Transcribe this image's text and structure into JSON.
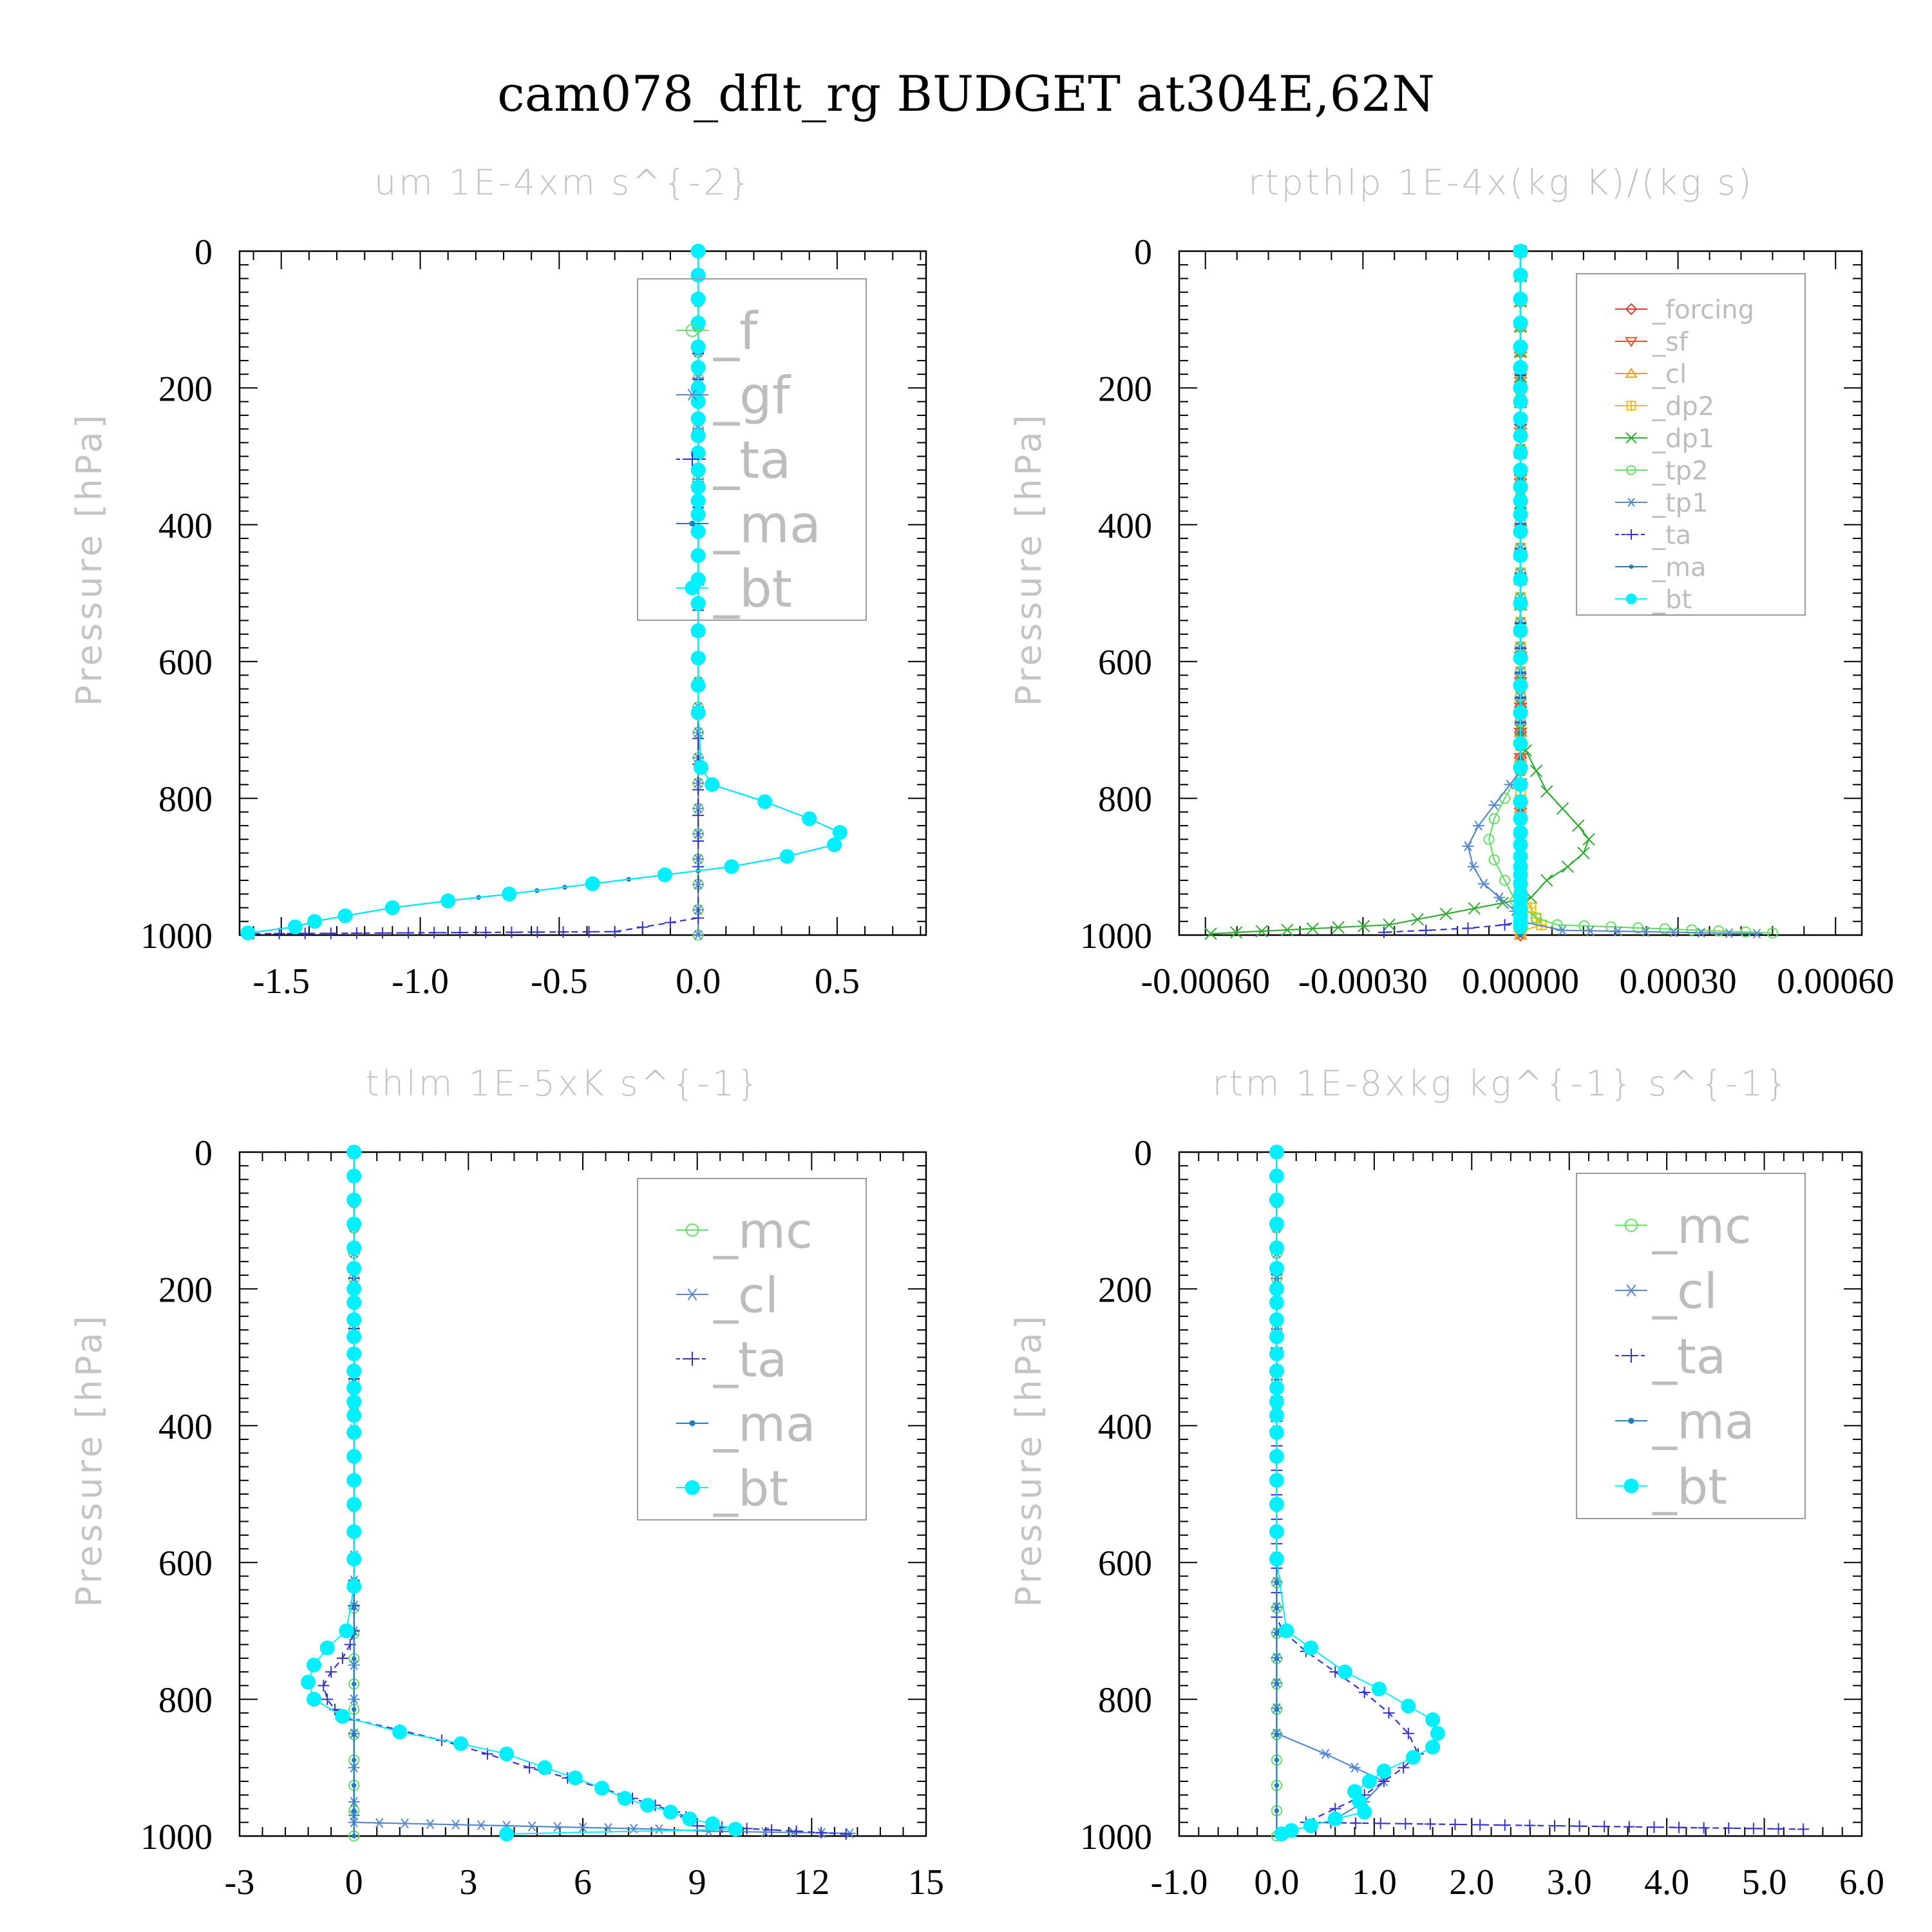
{
  "title": "cam078_dflt_rg  BUDGET at304E,62N",
  "chart_data": [
    {
      "type": "line",
      "title": "um   1E-4xm s^{-2}",
      "ylabel": "Pressure [hPa]",
      "xlabel": "",
      "xlim": [
        -1.65,
        0.82
      ],
      "ylim": [
        1000,
        0
      ],
      "xticks": [
        -1.5,
        -1.0,
        -0.5,
        0.0,
        0.5
      ],
      "xtick_labels": [
        "-1.5",
        "-1.0",
        "-0.5",
        "0.0",
        "0.5"
      ],
      "yticks": [
        0,
        200,
        400,
        600,
        800,
        1000
      ],
      "legend_font": 80,
      "series": [
        {
          "name": "_f",
          "color": "#66dd66",
          "marker": "circle-open",
          "x": [
            0,
            0
          ],
          "y": [
            0,
            1000
          ]
        },
        {
          "name": "_gf",
          "color": "#5588cc",
          "marker": "asterisk",
          "x": [
            0,
            0
          ],
          "y": [
            0,
            1000
          ]
        },
        {
          "name": "_ta",
          "color": "#3333cc",
          "marker": "plus",
          "dash": true,
          "x": [
            0,
            0,
            0,
            0,
            -0.3,
            -1.6
          ],
          "y": [
            0,
            600,
            900,
            975,
            995,
            998
          ]
        },
        {
          "name": "_ma",
          "color": "#1e7fc0",
          "marker": "dot",
          "x": [
            0,
            0,
            0,
            0,
            0,
            0,
            0,
            0,
            0,
            0,
            0,
            0,
            0,
            0,
            0,
            0,
            0,
            0,
            0,
            0,
            0,
            0,
            0,
            0.01,
            0.05,
            0.24,
            0.4,
            0.51,
            0.49,
            0.32,
            0.12,
            -0.12,
            -0.38,
            -0.68,
            -0.9,
            -1.1,
            -1.27,
            -1.38,
            -1.45,
            -1.62
          ],
          "y": [
            0,
            35,
            70,
            105,
            140,
            170,
            200,
            220,
            245,
            270,
            295,
            320,
            345,
            365,
            385,
            410,
            445,
            480,
            515,
            555,
            595,
            635,
            675,
            755,
            780,
            805,
            830,
            850,
            868,
            885,
            900,
            912,
            925,
            940,
            950,
            960,
            972,
            980,
            988,
            997
          ]
        },
        {
          "name": "_bt",
          "color": "#00f0ff",
          "marker": "dot-big",
          "x": [
            0,
            0,
            0,
            0,
            0,
            0,
            0,
            0,
            0,
            0,
            0,
            0,
            0,
            0,
            0,
            0,
            0,
            0,
            0,
            0,
            0,
            0,
            0,
            0.01,
            0.05,
            0.24,
            0.4,
            0.51,
            0.49,
            0.32,
            0.12,
            -0.12,
            -0.38,
            -0.68,
            -0.9,
            -1.1,
            -1.27,
            -1.38,
            -1.45,
            -1.62
          ],
          "y": [
            0,
            35,
            70,
            105,
            140,
            170,
            200,
            220,
            245,
            270,
            295,
            320,
            345,
            365,
            385,
            410,
            445,
            480,
            515,
            555,
            595,
            635,
            675,
            755,
            780,
            805,
            830,
            850,
            868,
            885,
            900,
            912,
            925,
            940,
            950,
            960,
            972,
            980,
            988,
            997
          ]
        }
      ]
    },
    {
      "type": "line",
      "title": "rtpthlp   1E-4x(kg K)/(kg s)",
      "ylabel": "Pressure [hPa]",
      "xlabel": "",
      "xlim": [
        -0.00065,
        0.00065
      ],
      "ylim": [
        1000,
        0
      ],
      "xticks": [
        -0.0006,
        -0.0003,
        0.0,
        0.0003,
        0.0006
      ],
      "xtick_labels": [
        "-0.00060",
        "-0.00030",
        "0.00000",
        "0.00030",
        "0.00060"
      ],
      "yticks": [
        0,
        200,
        400,
        600,
        800,
        1000
      ],
      "legend_font": 40,
      "series": [
        {
          "name": "_forcing",
          "color": "#d94040",
          "marker": "diamond",
          "x": [
            0,
            0
          ],
          "y": [
            0,
            1000
          ]
        },
        {
          "name": "_sf",
          "color": "#e05030",
          "marker": "tri-down",
          "x": [
            0,
            0
          ],
          "y": [
            0,
            1000
          ]
        },
        {
          "name": "_cl",
          "color": "#e0a030",
          "marker": "tri-up",
          "x": [
            0,
            0
          ],
          "y": [
            0,
            1000
          ]
        },
        {
          "name": "_dp2",
          "color": "#e8c000",
          "marker": "square-plus",
          "x": [
            0,
            0,
            2e-05,
            3e-05,
            4e-05,
            0.0
          ],
          "y": [
            0,
            940,
            960,
            975,
            985,
            995
          ]
        },
        {
          "name": "_dp1",
          "color": "#33aa33",
          "marker": "x",
          "x": [
            0,
            0,
            1e-05,
            3e-05,
            5e-05,
            8e-05,
            0.00011,
            0.00013,
            0.00012,
            9e-05,
            5e-05,
            2e-05,
            -0.00025,
            -0.00059
          ],
          "y": [
            0,
            700,
            730,
            760,
            790,
            815,
            840,
            860,
            880,
            900,
            920,
            945,
            985,
            998
          ]
        },
        {
          "name": "_tp2",
          "color": "#66dd66",
          "marker": "circle-open",
          "x": [
            0,
            0,
            -3e-05,
            -5e-05,
            -6e-05,
            -5e-05,
            -3e-05,
            -1e-05,
            3e-05,
            7e-05,
            0.00048
          ],
          "y": [
            0,
            760,
            800,
            830,
            860,
            890,
            920,
            950,
            975,
            985,
            997
          ]
        },
        {
          "name": "_tp1",
          "color": "#5588cc",
          "marker": "asterisk",
          "x": [
            0,
            0,
            -2e-05,
            -5e-05,
            -8e-05,
            -0.0001,
            -9e-05,
            -7e-05,
            -4e-05,
            -1e-05,
            0,
            8e-05,
            0.00045
          ],
          "y": [
            0,
            760,
            780,
            810,
            840,
            870,
            900,
            925,
            945,
            965,
            980,
            993,
            998
          ]
        },
        {
          "name": "_ta",
          "color": "#3333cc",
          "marker": "plus",
          "dash": true,
          "x": [
            0,
            0,
            -3e-05,
            -0.0001,
            -0.00018,
            -0.00026
          ],
          "y": [
            0,
            980,
            985,
            990,
            993,
            996
          ]
        },
        {
          "name": "_ma",
          "color": "#1e7fc0",
          "marker": "dot",
          "x": [
            0,
            0
          ],
          "y": [
            0,
            1000
          ]
        },
        {
          "name": "_bt",
          "color": "#00f0ff",
          "marker": "dot-big",
          "x": [
            0,
            0,
            0,
            0,
            0,
            0,
            0,
            0,
            0,
            0,
            0,
            0,
            0,
            0,
            0,
            0,
            0,
            0,
            0,
            0,
            0,
            0,
            0,
            0,
            0,
            0,
            0,
            0,
            0,
            0,
            0,
            0,
            0,
            0,
            0,
            0,
            0,
            0,
            0,
            0
          ],
          "y": [
            0,
            35,
            70,
            105,
            140,
            170,
            200,
            220,
            245,
            270,
            295,
            320,
            345,
            365,
            385,
            410,
            445,
            480,
            515,
            555,
            595,
            635,
            675,
            720,
            755,
            780,
            805,
            830,
            850,
            868,
            885,
            900,
            912,
            925,
            940,
            950,
            960,
            972,
            980,
            988
          ]
        }
      ]
    },
    {
      "type": "line",
      "title": "thlm   1E-5xK s^{-1}",
      "ylabel": "Pressure [hPa]",
      "xlabel": "",
      "xlim": [
        -3,
        15
      ],
      "ylim": [
        1000,
        0
      ],
      "xticks": [
        -3,
        0,
        3,
        6,
        9,
        12,
        15
      ],
      "xtick_labels": [
        "-3",
        "0",
        "3",
        "6",
        "9",
        "12",
        "15"
      ],
      "yticks": [
        0,
        200,
        400,
        600,
        800,
        1000
      ],
      "legend_font": 76,
      "series": [
        {
          "name": "_mc",
          "color": "#66dd66",
          "marker": "circle-open",
          "x": [
            0,
            0
          ],
          "y": [
            0,
            1000
          ]
        },
        {
          "name": "_cl",
          "color": "#5588cc",
          "marker": "asterisk",
          "x": [
            0,
            0,
            0,
            0,
            0,
            0,
            0,
            8.0,
            9.3,
            13.0
          ],
          "y": [
            0,
            700,
            800,
            900,
            950,
            970,
            980,
            990,
            993,
            996
          ]
        },
        {
          "name": "_ta",
          "color": "#3333cc",
          "marker": "plus",
          "dash": true,
          "x": [
            0,
            0,
            -0.1,
            -0.3,
            -0.6,
            -0.8,
            -0.7,
            -0.5,
            0.0,
            1.2,
            2.3,
            3.5,
            4.6,
            5.6,
            6.5,
            7.3,
            7.9,
            8.4,
            8.7,
            9.0,
            12.9
          ],
          "y": [
            0,
            700,
            720,
            740,
            760,
            780,
            800,
            815,
            830,
            845,
            860,
            880,
            900,
            915,
            930,
            945,
            955,
            965,
            972,
            985,
            997
          ]
        },
        {
          "name": "_ma",
          "color": "#1e7fc0",
          "marker": "dot",
          "x": [
            0,
            0
          ],
          "y": [
            0,
            1000
          ]
        },
        {
          "name": "_bt",
          "color": "#00f0ff",
          "marker": "dot-big",
          "x": [
            0,
            0,
            0,
            0,
            0,
            0,
            0,
            0,
            0,
            0,
            0,
            0,
            0,
            0,
            0,
            0,
            0,
            0,
            0,
            0,
            0,
            0,
            -0.2,
            -0.7,
            -1.05,
            -1.2,
            -1.05,
            -0.3,
            1.2,
            2.8,
            4.0,
            5.0,
            5.8,
            6.5,
            7.1,
            7.7,
            8.3,
            8.8,
            9.4,
            10.0,
            4.0
          ],
          "y": [
            0,
            35,
            70,
            105,
            140,
            170,
            200,
            220,
            245,
            270,
            295,
            320,
            345,
            365,
            385,
            410,
            445,
            480,
            515,
            555,
            595,
            635,
            700,
            725,
            750,
            775,
            800,
            825,
            848,
            865,
            880,
            900,
            915,
            930,
            945,
            955,
            965,
            975,
            982,
            990,
            997
          ]
        }
      ]
    },
    {
      "type": "line",
      "title": "rtm   1E-8xkg kg^{-1} s^{-1}",
      "ylabel": "Pressure [hPa]",
      "xlabel": "",
      "xlim": [
        -1.0,
        6.0
      ],
      "ylim": [
        1000,
        0
      ],
      "xticks": [
        -1.0,
        0.0,
        1.0,
        2.0,
        3.0,
        4.0,
        5.0,
        6.0
      ],
      "xtick_labels": [
        "-1.0",
        "0.0",
        "1.0",
        "2.0",
        "3.0",
        "4.0",
        "5.0",
        "6.0"
      ],
      "yticks": [
        0,
        200,
        400,
        600,
        800,
        1000
      ],
      "legend_font": 76,
      "series": [
        {
          "name": "_mc",
          "color": "#66dd66",
          "marker": "circle-open",
          "x": [
            0,
            0
          ],
          "y": [
            0,
            1000
          ]
        },
        {
          "name": "_cl",
          "color": "#5588cc",
          "marker": "asterisk",
          "x": [
            0,
            0,
            0.5,
            1.1,
            0.9,
            0.6
          ],
          "y": [
            0,
            850,
            880,
            920,
            950,
            975
          ]
        },
        {
          "name": "_ta",
          "color": "#3333cc",
          "marker": "plus",
          "dash": true,
          "x": [
            0,
            0,
            0.06,
            0.3,
            0.6,
            0.9,
            1.15,
            1.35,
            1.45,
            1.3,
            1.1,
            0.9,
            0.6,
            0.3,
            5.4
          ],
          "y": [
            0,
            680,
            700,
            730,
            760,
            790,
            820,
            850,
            880,
            900,
            920,
            940,
            960,
            980,
            990
          ]
        },
        {
          "name": "_ma",
          "color": "#1e7fc0",
          "marker": "dot",
          "x": [
            0,
            0
          ],
          "y": [
            0,
            1000
          ]
        },
        {
          "name": "_bt",
          "color": "#00f0ff",
          "marker": "dot-big",
          "x": [
            0,
            0,
            0,
            0,
            0,
            0,
            0,
            0,
            0,
            0,
            0,
            0,
            0,
            0,
            0,
            0,
            0,
            0,
            0,
            0,
            0,
            0.1,
            0.35,
            0.7,
            1.05,
            1.35,
            1.6,
            1.65,
            1.6,
            1.4,
            1.1,
            0.95,
            0.8,
            0.85,
            0.9,
            0.6,
            0.35,
            0.15,
            0.05
          ],
          "y": [
            0,
            35,
            70,
            105,
            140,
            170,
            200,
            220,
            245,
            270,
            295,
            320,
            345,
            365,
            385,
            410,
            445,
            480,
            515,
            555,
            595,
            700,
            725,
            760,
            785,
            810,
            830,
            850,
            870,
            885,
            905,
            920,
            935,
            950,
            965,
            975,
            985,
            992,
            997
          ]
        }
      ]
    }
  ]
}
